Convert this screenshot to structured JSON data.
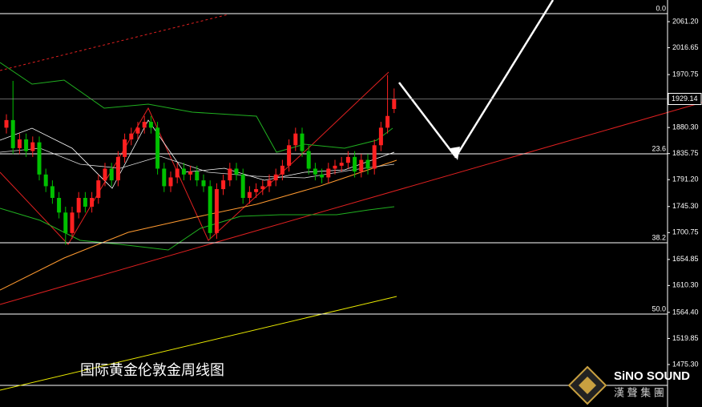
{
  "chart_data": {
    "type": "candlestick",
    "annotation": "国际黄金伦敦金周线图",
    "logo": {
      "name": "SiNO SOUND",
      "subtitle": "漢 聲 集 團"
    },
    "up_color": "#ff2020",
    "down_color": "#00c000",
    "open": [
      1880,
      1893,
      1845,
      1860,
      1840,
      1855,
      1800,
      1780,
      1760,
      1735,
      1700,
      1735,
      1760,
      1745,
      1760,
      1790,
      1810,
      1790,
      1830,
      1860,
      1870,
      1880,
      1890,
      1880,
      1810,
      1780,
      1795,
      1810,
      1800,
      1805,
      1790,
      1780,
      1700,
      1775,
      1790,
      1810,
      1800,
      1760,
      1770,
      1775,
      1780,
      1790,
      1800,
      1815,
      1850,
      1870,
      1840,
      1810,
      1800,
      1795,
      1810,
      1815,
      1820,
      1830,
      1805,
      1825,
      1810,
      1850,
      1880,
      1912
    ],
    "high": [
      1903,
      1960,
      1870,
      1870,
      1865,
      1865,
      1810,
      1790,
      1770,
      1745,
      1745,
      1770,
      1770,
      1770,
      1800,
      1820,
      1820,
      1840,
      1870,
      1880,
      1890,
      1900,
      1900,
      1890,
      1820,
      1805,
      1820,
      1820,
      1815,
      1815,
      1800,
      1790,
      1785,
      1800,
      1820,
      1820,
      1810,
      1780,
      1785,
      1790,
      1800,
      1810,
      1825,
      1860,
      1880,
      1880,
      1850,
      1820,
      1810,
      1820,
      1825,
      1830,
      1840,
      1840,
      1835,
      1835,
      1860,
      1890,
      1970,
      1947
    ],
    "low": [
      1870,
      1835,
      1835,
      1830,
      1830,
      1790,
      1770,
      1750,
      1725,
      1680,
      1690,
      1725,
      1735,
      1735,
      1750,
      1780,
      1780,
      1780,
      1820,
      1850,
      1860,
      1870,
      1870,
      1800,
      1770,
      1770,
      1785,
      1790,
      1790,
      1780,
      1770,
      1690,
      1690,
      1765,
      1780,
      1790,
      1750,
      1750,
      1760,
      1765,
      1770,
      1780,
      1790,
      1805,
      1840,
      1830,
      1800,
      1790,
      1785,
      1785,
      1800,
      1805,
      1810,
      1795,
      1795,
      1800,
      1800,
      1840,
      1870,
      1905
    ],
    "close": [
      1893,
      1845,
      1860,
      1840,
      1855,
      1800,
      1780,
      1760,
      1735,
      1700,
      1735,
      1760,
      1745,
      1760,
      1790,
      1810,
      1790,
      1830,
      1860,
      1870,
      1880,
      1890,
      1880,
      1810,
      1780,
      1795,
      1810,
      1800,
      1805,
      1790,
      1780,
      1700,
      1775,
      1790,
      1810,
      1800,
      1760,
      1770,
      1775,
      1780,
      1790,
      1800,
      1815,
      1850,
      1870,
      1840,
      1810,
      1800,
      1795,
      1810,
      1815,
      1820,
      1830,
      1805,
      1825,
      1810,
      1850,
      1880,
      1900,
      1929.14
    ],
    "current_price": 1929.14,
    "fib_levels": [
      {
        "label": "0.0",
        "price": 2074.9
      },
      {
        "label": "23.6",
        "price": 1835.4
      },
      {
        "label": "38.2",
        "price": 1683.4
      },
      {
        "label": "50.0",
        "price": 1561.6
      }
    ],
    "ylim": [
      1402.7,
      2098.2
    ],
    "yticks": [
      {
        "value": 2061.2,
        "label": "2061.20"
      },
      2016.65,
      1970.75,
      {
        "value": 1880.3,
        "label": "1880.30"
      },
      1835.75,
      {
        "value": 1791.2,
        "label": "1791.20"
      },
      {
        "value": 1745.3,
        "label": "1745.30"
      },
      1700.75,
      1654.85,
      {
        "value": 1610.3,
        "label": "1610.30"
      },
      {
        "value": 1564.4,
        "label": "1564.40"
      },
      1519.85,
      {
        "value": 1475.3,
        "label": "1475.30"
      }
    ],
    "grid": false
  }
}
